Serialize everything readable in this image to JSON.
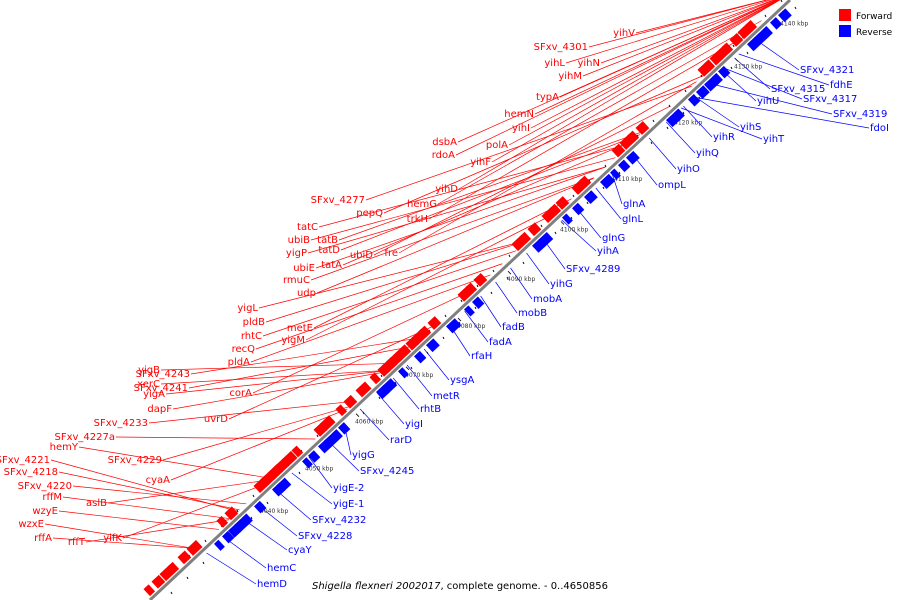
{
  "colors": {
    "forward": "#ff0000",
    "reverse": "#0000ff",
    "backbone": "#808080"
  },
  "legend": [
    {
      "label": "Forward",
      "color": "#ff0000"
    },
    {
      "label": "Reverse",
      "color": "#0000ff"
    }
  ],
  "caption": {
    "organism": "Shigella flexneri 2002017",
    "rest": ", complete genome. - 0..4650856"
  },
  "ticks": [
    "4040 kbp",
    "4050 kbp",
    "4060 kbp",
    "4070 kbp",
    "4080 kbp",
    "4090 kbp",
    "4100 kbp",
    "4110 kbp",
    "4120 kbp",
    "4130 kbp",
    "4140 kbp"
  ],
  "forward_labels": [
    "rffA",
    "wzxE",
    "wzyE",
    "rffM",
    "SFxv_4220",
    "SFxv_4218",
    "SFxv_4221",
    "hemY",
    "rffT",
    "yifK",
    "aslB",
    "cyaA",
    "SFxv_4229",
    "SFxv_4227a",
    "SFxv_4233",
    "dapF",
    "uvrD",
    "yigA",
    "xerC",
    "yigB",
    "SFxv_4241",
    "SFxv_4243",
    "corA",
    "pldA",
    "recQ",
    "rhtC",
    "pldB",
    "yigL",
    "yigM",
    "metE",
    "udp",
    "rmuC",
    "ubiE",
    "yigP",
    "ubiB",
    "tatC",
    "tatB",
    "tatD",
    "tatA",
    "ubiD",
    "fre",
    "pepQ",
    "SFxv_4277",
    "trkH",
    "hemG",
    "yihD",
    "rdoA",
    "dsbA",
    "yihF",
    "polA",
    "yihI",
    "hemN",
    "typA",
    "yihM",
    "yihL",
    "yihN",
    "SFxv_4301",
    "yihV"
  ],
  "reverse_labels": [
    "hemD",
    "hemC",
    "cyaY",
    "SFxv_4228",
    "SFxv_4232",
    "yigE-1",
    "yigE-2",
    "SFxv_4245",
    "yigG",
    "rarD",
    "yigI",
    "rhtB",
    "metR",
    "ysgA",
    "rfaH",
    "fadA",
    "fadB",
    "mobB",
    "mobA",
    "yihG",
    "SFxv_4289",
    "yihA",
    "glnG",
    "glnL",
    "glnA",
    "ompL",
    "yihO",
    "yihQ",
    "yihR",
    "yihS",
    "yihT",
    "yihU",
    "SFxv_4315",
    "SFxv_4317",
    "SFxv_4319",
    "fdoI",
    "fdhE",
    "SFxv_4321"
  ]
}
